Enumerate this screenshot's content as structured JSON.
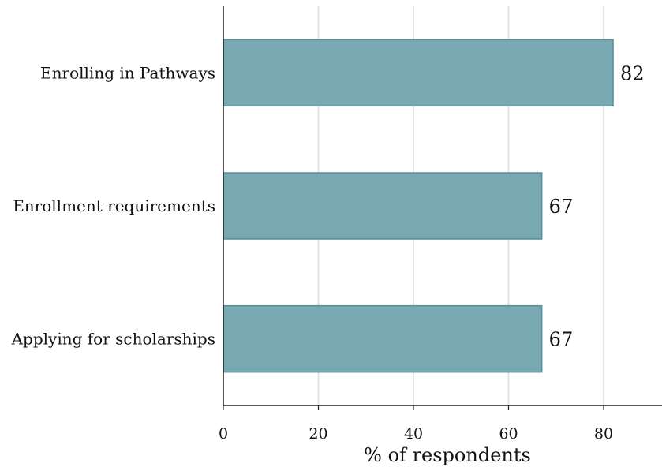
{
  "chart_data": {
    "type": "bar",
    "orientation": "horizontal",
    "categories": [
      "Enrolling in Pathways",
      "Enrollment requirements",
      "Applying for scholarships"
    ],
    "values": [
      82,
      67,
      67
    ],
    "value_labels": [
      "82",
      "67",
      "67"
    ],
    "title": "",
    "xlabel": "% of respondents",
    "ylabel": "",
    "xlim": [
      0,
      92
    ],
    "xticks": [
      0,
      20,
      40,
      60,
      80
    ],
    "xtick_labels": [
      "0",
      "20",
      "40",
      "60",
      "80"
    ],
    "grid": "vertical",
    "colors": {
      "bar_fill": "#78a8b2",
      "bar_edge": "#5a8e99",
      "grid": "#dedede",
      "axis": "#222222"
    }
  }
}
